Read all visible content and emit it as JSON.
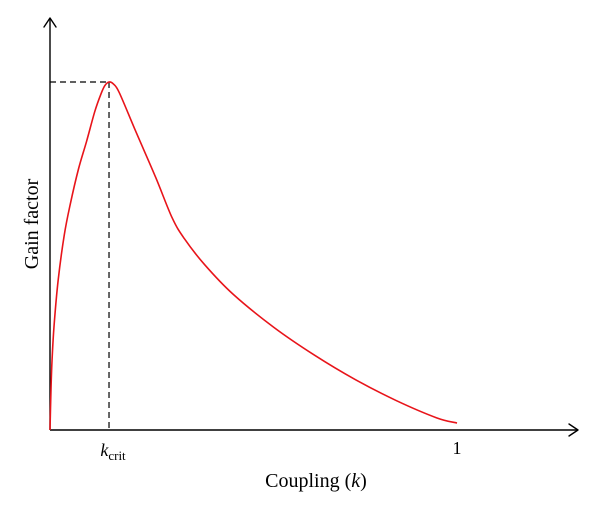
{
  "chart_data": {
    "type": "line",
    "xlabel_main": "Coupling (",
    "xlabel_var": "k",
    "xlabel_tail": ")",
    "ylabel": "Gain factor",
    "x_ticks": [
      {
        "kind": "crit",
        "base": "k",
        "sub": "crit",
        "x": 0.145
      },
      {
        "kind": "plain",
        "label": "1",
        "x": 1.0
      }
    ],
    "xlim": [
      0,
      1.3
    ],
    "ylim": [
      0,
      1.0
    ],
    "critical_point": {
      "x": 0.145,
      "y": 1.0
    },
    "series": [
      {
        "color": "#e8141a",
        "points": [
          [
            0.0,
            0.0
          ],
          [
            0.0025,
            0.12
          ],
          [
            0.005,
            0.2
          ],
          [
            0.01,
            0.3
          ],
          [
            0.02,
            0.43
          ],
          [
            0.035,
            0.56
          ],
          [
            0.05,
            0.65
          ],
          [
            0.07,
            0.75
          ],
          [
            0.09,
            0.83
          ],
          [
            0.11,
            0.915
          ],
          [
            0.125,
            0.965
          ],
          [
            0.135,
            0.99
          ],
          [
            0.145,
            1.0
          ],
          [
            0.155,
            0.995
          ],
          [
            0.17,
            0.97
          ],
          [
            0.21,
            0.86
          ],
          [
            0.26,
            0.725
          ],
          [
            0.3,
            0.61
          ],
          [
            0.33,
            0.55
          ],
          [
            0.38,
            0.475
          ],
          [
            0.45,
            0.39
          ],
          [
            0.55,
            0.295
          ],
          [
            0.65,
            0.215
          ],
          [
            0.75,
            0.145
          ],
          [
            0.85,
            0.085
          ],
          [
            0.95,
            0.035
          ],
          [
            1.0,
            0.02
          ]
        ]
      }
    ]
  }
}
